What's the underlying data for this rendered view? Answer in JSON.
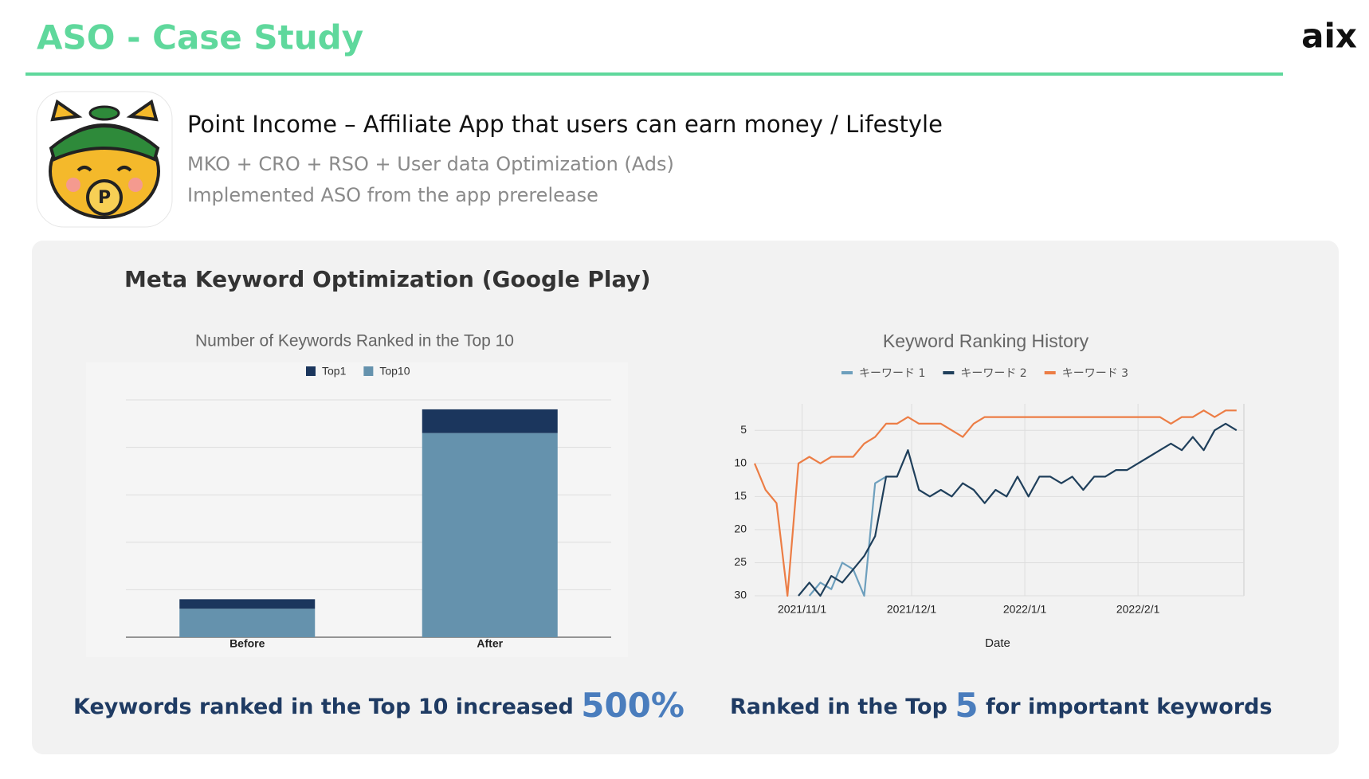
{
  "header": {
    "title": "ASO - Case Study",
    "logo": "aix"
  },
  "app": {
    "name": "Point Income – Affiliate App that users can earn money / Lifestyle",
    "lines": [
      "MKO + CRO + RSO + User data Optimization (Ads)",
      "Implemented ASO from the app prerelease"
    ]
  },
  "section_title": "Meta Keyword Optimization (Google Play)",
  "chart_data": [
    {
      "type": "bar",
      "title": "Number of Keywords Ranked in the Top 10",
      "categories": [
        "Before",
        "After"
      ],
      "series": [
        {
          "name": "Top1",
          "color": "#1b365d",
          "values": [
            2,
            5
          ]
        },
        {
          "name": "Top10",
          "color": "#6592ad",
          "values": [
            6,
            43
          ]
        }
      ],
      "stacked": true,
      "ylim": [
        0,
        50
      ],
      "yticks": [
        0,
        10,
        20,
        30,
        40,
        50
      ],
      "ytick_labels": false,
      "grid": true
    },
    {
      "type": "line",
      "title": "Keyword Ranking History",
      "xlabel": "Date",
      "x": [
        "2021-10-19",
        "2021-10-22",
        "2021-10-25",
        "2021-10-28",
        "2021-10-31",
        "2021-11-03",
        "2021-11-06",
        "2021-11-09",
        "2021-11-12",
        "2021-11-15",
        "2021-11-18",
        "2021-11-21",
        "2021-11-24",
        "2021-11-27",
        "2021-11-30",
        "2021-12-03",
        "2021-12-06",
        "2021-12-09",
        "2021-12-12",
        "2021-12-15",
        "2021-12-18",
        "2021-12-21",
        "2021-12-24",
        "2021-12-27",
        "2021-12-30",
        "2022-01-02",
        "2022-01-05",
        "2022-01-08",
        "2022-01-11",
        "2022-01-14",
        "2022-01-17",
        "2022-01-20",
        "2022-01-23",
        "2022-01-26",
        "2022-01-29",
        "2022-02-01",
        "2022-02-04",
        "2022-02-07",
        "2022-02-10",
        "2022-02-13",
        "2022-02-16",
        "2022-02-19",
        "2022-02-22",
        "2022-02-25",
        "2022-02-28"
      ],
      "series": [
        {
          "name": "キーワード 1",
          "color": "#6d9fbd",
          "values": [
            null,
            null,
            null,
            null,
            null,
            30,
            28,
            29,
            25,
            26,
            30,
            13,
            12,
            null,
            null,
            null,
            null,
            null,
            null,
            null,
            null,
            null,
            null,
            null,
            null,
            null,
            null,
            null,
            null,
            null,
            null,
            null,
            null,
            null,
            null,
            null,
            null,
            null,
            null,
            null,
            null,
            null,
            null,
            null,
            null
          ]
        },
        {
          "name": "キーワード 2",
          "color": "#1f3f5b",
          "values": [
            null,
            null,
            null,
            null,
            30,
            28,
            30,
            27,
            28,
            26,
            24,
            21,
            12,
            12,
            8,
            14,
            15,
            14,
            15,
            13,
            14,
            16,
            14,
            15,
            12,
            15,
            12,
            12,
            13,
            12,
            14,
            12,
            12,
            11,
            11,
            10,
            9,
            8,
            7,
            8,
            6,
            8,
            5,
            4,
            5
          ]
        },
        {
          "name": "キーワード 3",
          "color": "#ec7d45",
          "values": [
            10,
            14,
            16,
            30,
            10,
            9,
            10,
            9,
            9,
            9,
            7,
            6,
            4,
            4,
            3,
            4,
            4,
            4,
            5,
            6,
            4,
            3,
            3,
            3,
            3,
            3,
            3,
            3,
            3,
            3,
            3,
            3,
            3,
            3,
            3,
            3,
            3,
            3,
            4,
            3,
            3,
            2,
            3,
            2,
            2
          ]
        }
      ],
      "xlim": [
        "2021-10-19",
        "2022-03-02"
      ],
      "xticks": [
        {
          "value": "2021-11-01",
          "label": "2021/11/1"
        },
        {
          "value": "2021-12-01",
          "label": "2021/12/1"
        },
        {
          "value": "2022-01-01",
          "label": "2022/1/1"
        },
        {
          "value": "2022-02-01",
          "label": "2022/2/1"
        }
      ],
      "ylim": [
        30,
        1
      ],
      "yticks": [
        5,
        10,
        15,
        20,
        25,
        30
      ],
      "grid": true,
      "legend": "top"
    }
  ],
  "captions": [
    {
      "text": "Keywords ranked in the Top 10 increased ",
      "highlight": "500%"
    },
    {
      "text": "Ranked in the Top ",
      "highlight": "5",
      "after": " for important keywords"
    }
  ]
}
